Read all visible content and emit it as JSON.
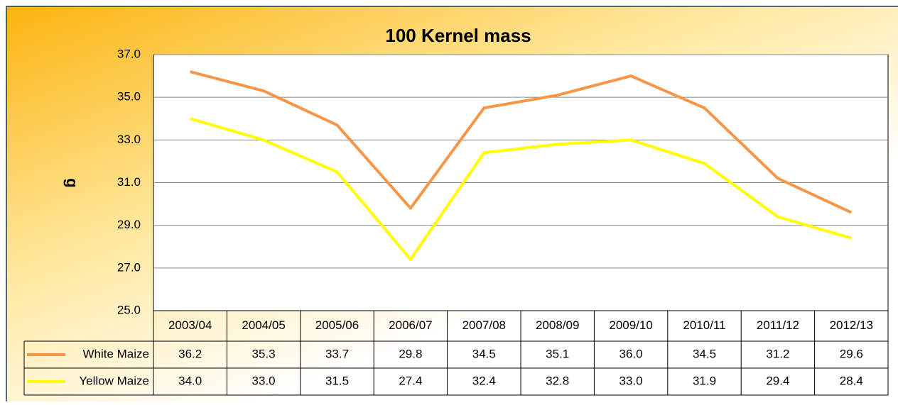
{
  "chart_data": {
    "type": "line",
    "title": "100 Kernel mass",
    "y_label": "g",
    "categories": [
      "2003/04",
      "2004/05",
      "2005/06",
      "2006/07",
      "2007/08",
      "2008/09",
      "2009/10",
      "2010/11",
      "2011/12",
      "2012/13"
    ],
    "series": [
      {
        "name": "White Maize",
        "color": "#f79646",
        "values": [
          36.2,
          35.3,
          33.7,
          29.8,
          34.5,
          35.1,
          36.0,
          34.5,
          31.2,
          29.6
        ],
        "value_labels": [
          "36.2",
          "35.3",
          "33.7",
          "29.8",
          "34.5",
          "35.1",
          "36.0",
          "34.5",
          "31.2",
          "29.6"
        ]
      },
      {
        "name": "Yellow Maize",
        "color": "#ffff00",
        "values": [
          34.0,
          33.0,
          31.5,
          27.4,
          32.4,
          32.8,
          33.0,
          31.9,
          29.4,
          28.4
        ],
        "value_labels": [
          "34.0",
          "33.0",
          "31.5",
          "27.4",
          "32.4",
          "32.8",
          "33.0",
          "31.9",
          "29.4",
          "28.4"
        ]
      }
    ],
    "ylim": [
      25,
      37
    ],
    "yticks": [
      {
        "value": 25,
        "label": "25.0"
      },
      {
        "value": 27,
        "label": "27.0"
      },
      {
        "value": 29,
        "label": "29.0"
      },
      {
        "value": 31,
        "label": "31.0"
      },
      {
        "value": 33,
        "label": "33.0"
      },
      {
        "value": 35,
        "label": "35.0"
      },
      {
        "value": 37,
        "label": "37.0"
      }
    ],
    "grid": true
  }
}
